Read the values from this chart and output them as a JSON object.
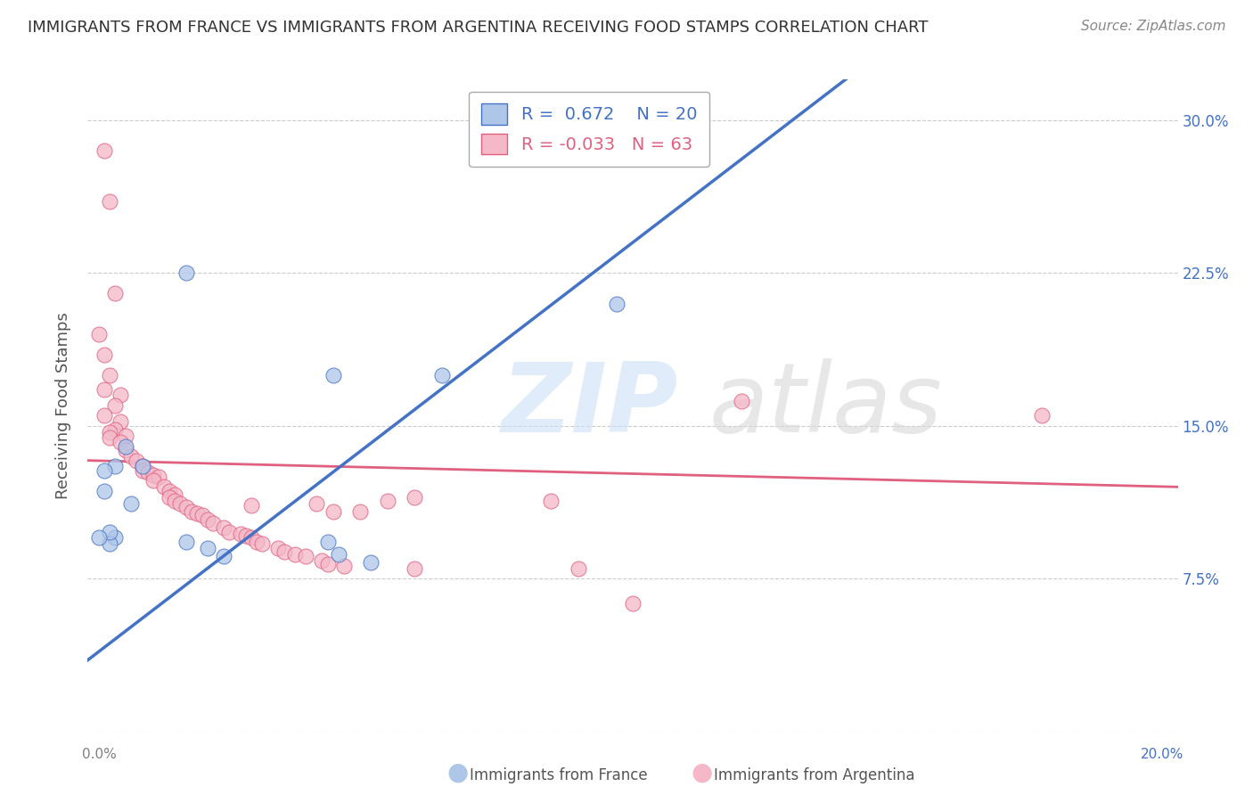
{
  "title": "IMMIGRANTS FROM FRANCE VS IMMIGRANTS FROM ARGENTINA RECEIVING FOOD STAMPS CORRELATION CHART",
  "source": "Source: ZipAtlas.com",
  "ylabel": "Receiving Food Stamps",
  "x_label_france": "Immigrants from France",
  "x_label_argentina": "Immigrants from Argentina",
  "xlim": [
    0.0,
    0.2
  ],
  "ylim": [
    0.0,
    0.32
  ],
  "yticks": [
    0.0,
    0.075,
    0.15,
    0.225,
    0.3
  ],
  "ytick_labels_right": [
    "",
    "7.5%",
    "15.0%",
    "22.5%",
    "30.0%"
  ],
  "france_R": 0.672,
  "france_N": 20,
  "argentina_R": -0.033,
  "argentina_N": 63,
  "france_color": "#aec6e8",
  "argentina_color": "#f4b8c8",
  "france_line_color": "#4472c4",
  "argentina_line_color": "#e06080",
  "france_scatter": [
    [
      0.018,
      0.225
    ],
    [
      0.065,
      0.175
    ],
    [
      0.045,
      0.175
    ],
    [
      0.007,
      0.14
    ],
    [
      0.005,
      0.13
    ],
    [
      0.01,
      0.13
    ],
    [
      0.003,
      0.128
    ],
    [
      0.003,
      0.118
    ],
    [
      0.008,
      0.112
    ],
    [
      0.005,
      0.095
    ],
    [
      0.004,
      0.092
    ],
    [
      0.004,
      0.098
    ],
    [
      0.002,
      0.095
    ],
    [
      0.018,
      0.093
    ],
    [
      0.022,
      0.09
    ],
    [
      0.025,
      0.086
    ],
    [
      0.044,
      0.093
    ],
    [
      0.046,
      0.087
    ],
    [
      0.052,
      0.083
    ],
    [
      0.097,
      0.21
    ]
  ],
  "argentina_scatter": [
    [
      0.003,
      0.285
    ],
    [
      0.004,
      0.26
    ],
    [
      0.005,
      0.215
    ],
    [
      0.002,
      0.195
    ],
    [
      0.003,
      0.185
    ],
    [
      0.004,
      0.175
    ],
    [
      0.003,
      0.168
    ],
    [
      0.006,
      0.165
    ],
    [
      0.005,
      0.16
    ],
    [
      0.003,
      0.155
    ],
    [
      0.006,
      0.152
    ],
    [
      0.005,
      0.148
    ],
    [
      0.004,
      0.147
    ],
    [
      0.007,
      0.145
    ],
    [
      0.004,
      0.144
    ],
    [
      0.006,
      0.142
    ],
    [
      0.007,
      0.138
    ],
    [
      0.008,
      0.135
    ],
    [
      0.009,
      0.133
    ],
    [
      0.01,
      0.13
    ],
    [
      0.01,
      0.128
    ],
    [
      0.011,
      0.127
    ],
    [
      0.012,
      0.126
    ],
    [
      0.013,
      0.125
    ],
    [
      0.012,
      0.123
    ],
    [
      0.014,
      0.12
    ],
    [
      0.015,
      0.118
    ],
    [
      0.016,
      0.116
    ],
    [
      0.015,
      0.115
    ],
    [
      0.016,
      0.113
    ],
    [
      0.017,
      0.112
    ],
    [
      0.018,
      0.11
    ],
    [
      0.019,
      0.108
    ],
    [
      0.02,
      0.107
    ],
    [
      0.021,
      0.106
    ],
    [
      0.022,
      0.104
    ],
    [
      0.023,
      0.102
    ],
    [
      0.025,
      0.1
    ],
    [
      0.026,
      0.098
    ],
    [
      0.028,
      0.097
    ],
    [
      0.029,
      0.096
    ],
    [
      0.03,
      0.095
    ],
    [
      0.031,
      0.093
    ],
    [
      0.032,
      0.092
    ],
    [
      0.035,
      0.09
    ],
    [
      0.036,
      0.088
    ],
    [
      0.038,
      0.087
    ],
    [
      0.04,
      0.086
    ],
    [
      0.043,
      0.084
    ],
    [
      0.044,
      0.082
    ],
    [
      0.047,
      0.081
    ],
    [
      0.03,
      0.111
    ],
    [
      0.042,
      0.112
    ],
    [
      0.06,
      0.115
    ],
    [
      0.045,
      0.108
    ],
    [
      0.05,
      0.108
    ],
    [
      0.055,
      0.113
    ],
    [
      0.06,
      0.08
    ],
    [
      0.085,
      0.113
    ],
    [
      0.09,
      0.08
    ],
    [
      0.12,
      0.162
    ],
    [
      0.175,
      0.155
    ],
    [
      0.1,
      0.063
    ]
  ]
}
